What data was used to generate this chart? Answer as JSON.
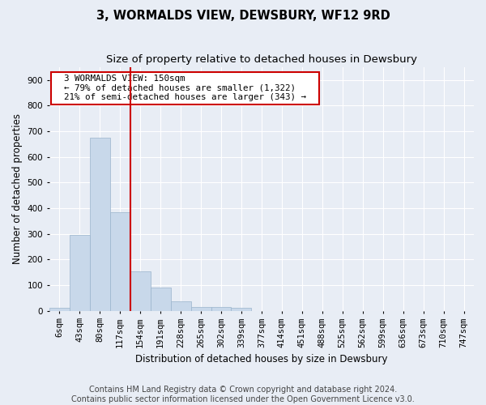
{
  "title": "3, WORMALDS VIEW, DEWSBURY, WF12 9RD",
  "subtitle": "Size of property relative to detached houses in Dewsbury",
  "xlabel": "Distribution of detached houses by size in Dewsbury",
  "ylabel": "Number of detached properties",
  "bar_values": [
    10,
    295,
    675,
    385,
    155,
    90,
    38,
    15,
    15,
    10,
    0,
    0,
    0,
    0,
    0,
    0,
    0,
    0,
    0,
    0,
    0
  ],
  "bar_labels": [
    "6sqm",
    "43sqm",
    "80sqm",
    "117sqm",
    "154sqm",
    "191sqm",
    "228sqm",
    "265sqm",
    "302sqm",
    "339sqm",
    "377sqm",
    "414sqm",
    "451sqm",
    "488sqm",
    "525sqm",
    "562sqm",
    "599sqm",
    "636sqm",
    "673sqm",
    "710sqm",
    "747sqm"
  ],
  "bar_color": "#c8d8ea",
  "bar_edgecolor": "#9ab4cc",
  "vline_color": "#cc0000",
  "vline_x_index": 3.5,
  "annotation_text": "  3 WORMALDS VIEW: 150sqm  \n  ← 79% of detached houses are smaller (1,322)  \n  21% of semi-detached houses are larger (343) →  ",
  "annotation_box_facecolor": "#ffffff",
  "annotation_box_edgecolor": "#cc0000",
  "ylim": [
    0,
    950
  ],
  "yticks": [
    0,
    100,
    200,
    300,
    400,
    500,
    600,
    700,
    800,
    900
  ],
  "bg_color": "#e8edf5",
  "plot_bg_color": "#e8edf5",
  "grid_color": "#ffffff",
  "title_fontsize": 10.5,
  "subtitle_fontsize": 9.5,
  "axis_label_fontsize": 8.5,
  "tick_fontsize": 7.5,
  "annotation_fontsize": 7.8,
  "footer_fontsize": 7.0,
  "footer_line1": "Contains HM Land Registry data © Crown copyright and database right 2024.",
  "footer_line2": "Contains public sector information licensed under the Open Government Licence v3.0."
}
